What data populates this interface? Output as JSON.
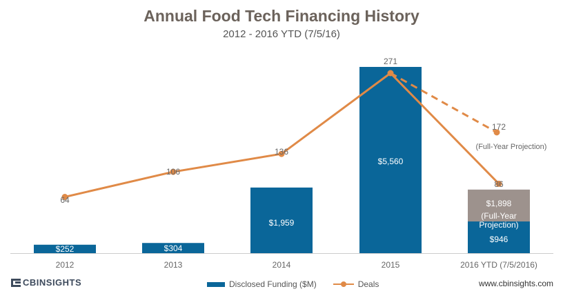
{
  "title": "Annual Food Tech Financing History",
  "subtitle": "2012 - 2016 YTD (7/5/16)",
  "colors": {
    "title": "#6b625b",
    "bar": "#0a6699",
    "projection_bar": "#9d928d",
    "line": "#e08a47",
    "axis": "#cccccc",
    "label": "#666666"
  },
  "chart_data": {
    "type": "bar+line",
    "categories": [
      "2012",
      "2013",
      "2014",
      "2015",
      "2016 YTD (7/5/2016)"
    ],
    "series": [
      {
        "name": "Disclosed Funding ($M)",
        "type": "bar",
        "values": [
          252,
          304,
          1959,
          5560,
          946
        ],
        "labels": [
          "$252",
          "$304",
          "$1,959",
          "$5,560",
          "$946"
        ]
      },
      {
        "name": "Deals",
        "type": "line",
        "values": [
          64,
          106,
          136,
          271,
          86
        ],
        "labels": [
          "64",
          "106",
          "136",
          "271",
          "86"
        ]
      }
    ],
    "projections": {
      "funding_value": 1898,
      "funding_label": "$1,898",
      "funding_note": "(Full-Year Projection)",
      "funding_note_lines": [
        "(Full-Year",
        "Projection)"
      ],
      "deals_value": 172,
      "deals_label": "172",
      "deals_note": "(Full-Year Projection)"
    },
    "legend": [
      "Disclosed Funding ($M)",
      "Deals"
    ],
    "funding_max": 5560,
    "deals_max": 271
  },
  "footer": {
    "logo_text": "CBINSIGHTS",
    "website": "www.cbinsights.com"
  }
}
